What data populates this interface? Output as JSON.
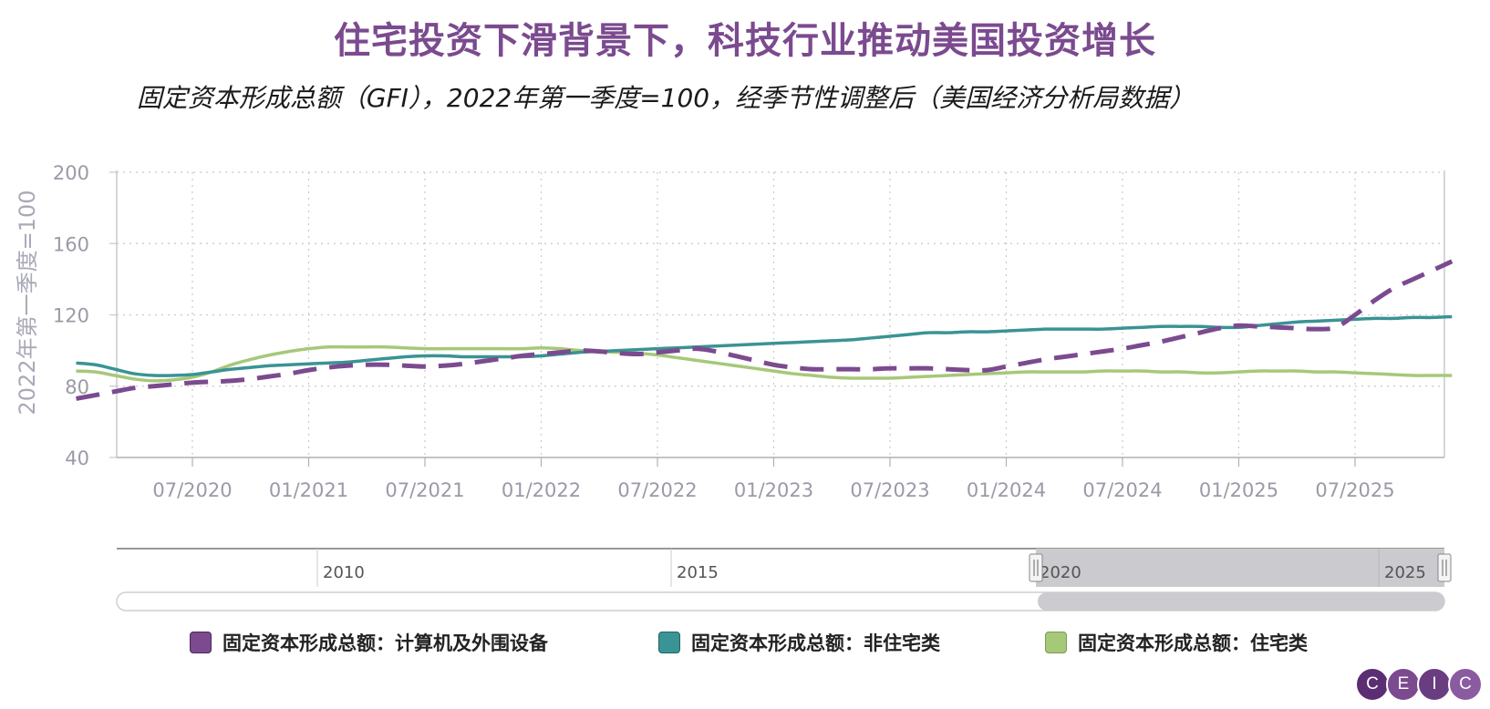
{
  "title": "住宅投资下滑背景下，科技行业推动美国投资增长",
  "subtitle": "固定资本形成总额（GFI），2022年第一季度=100，经季节性调整后（美国经济分析局数据）",
  "chart_data": {
    "type": "line",
    "ylabel": "2022年第一季度=100",
    "ylim": [
      40,
      200
    ],
    "yticks": [
      40,
      80,
      120,
      160,
      200
    ],
    "x_tick_labels": [
      "07/2020",
      "01/2021",
      "07/2021",
      "01/2022",
      "07/2022",
      "01/2023",
      "07/2023",
      "01/2024",
      "07/2024",
      "01/2025",
      "07/2025"
    ],
    "grid": true,
    "legend_position": "bottom",
    "x": [
      "01/2020",
      "02/2020",
      "03/2020",
      "04/2020",
      "05/2020",
      "06/2020",
      "07/2020",
      "08/2020",
      "09/2020",
      "10/2020",
      "11/2020",
      "12/2020",
      "01/2021",
      "02/2021",
      "03/2021",
      "04/2021",
      "05/2021",
      "06/2021",
      "07/2021",
      "08/2021",
      "09/2021",
      "10/2021",
      "11/2021",
      "12/2021",
      "01/2022",
      "02/2022",
      "03/2022",
      "04/2022",
      "05/2022",
      "06/2022",
      "07/2022",
      "08/2022",
      "09/2022",
      "10/2022",
      "11/2022",
      "12/2022",
      "01/2023",
      "02/2023",
      "03/2023",
      "04/2023",
      "05/2023",
      "06/2023",
      "07/2023",
      "08/2023",
      "09/2023",
      "10/2023",
      "11/2023",
      "12/2023",
      "01/2024",
      "02/2024",
      "03/2024",
      "04/2024",
      "05/2024",
      "06/2024",
      "07/2024",
      "08/2024",
      "09/2024",
      "10/2024",
      "11/2024",
      "12/2024",
      "01/2025",
      "02/2025",
      "03/2025",
      "04/2025",
      "05/2025",
      "06/2025",
      "07/2025",
      "08/2025",
      "09/2025",
      "10/2025",
      "11/2025",
      "12/2025"
    ],
    "series": [
      {
        "name": "固定资本形成总额：计算机及外围设备",
        "color": "#7b4a8f",
        "dashed": true,
        "values": [
          73,
          75,
          77,
          79,
          80,
          81,
          82,
          82.5,
          83,
          84,
          85.5,
          87,
          89,
          90.5,
          91.5,
          92,
          92,
          91.5,
          91,
          91.5,
          92.5,
          94,
          95.5,
          97,
          98,
          99,
          100,
          99.5,
          98.5,
          98,
          99,
          100,
          101,
          99.5,
          97,
          94.5,
          92,
          90.5,
          89.5,
          89.5,
          89.5,
          89.5,
          90,
          90,
          90,
          89.5,
          89,
          89,
          91,
          93,
          95,
          96.5,
          98,
          99.5,
          101,
          103,
          105,
          107.5,
          110,
          112.5,
          114,
          113.5,
          113,
          112.5,
          112,
          113,
          120,
          128,
          135,
          140,
          145,
          150
        ]
      },
      {
        "name": "固定资本形成总额：非住宅类",
        "color": "#3a9394",
        "dashed": false,
        "values": [
          93,
          92,
          89.5,
          87,
          86,
          86,
          86.5,
          88,
          89.5,
          90.5,
          91.5,
          92,
          92.5,
          93,
          93.5,
          94.5,
          95.5,
          96.5,
          97,
          97,
          96.5,
          96.5,
          96.5,
          96.5,
          97,
          98,
          99,
          99.5,
          100,
          100.5,
          101,
          101.5,
          102,
          102.5,
          103,
          103.5,
          104,
          104.5,
          105,
          105.5,
          106,
          107,
          108,
          109,
          110,
          110,
          110.5,
          110.5,
          111,
          111.5,
          112,
          112,
          112,
          112,
          112.5,
          113,
          113.5,
          113.5,
          113.5,
          113,
          113,
          114,
          115,
          116,
          116.5,
          117,
          117.5,
          118,
          118,
          118.5,
          118.5,
          119
        ]
      },
      {
        "name": "固定资本形成总额：住宅类",
        "color": "#a6c879",
        "dashed": false,
        "values": [
          88.5,
          88,
          86,
          84,
          83,
          83.5,
          85,
          88,
          92,
          95,
          97.5,
          99.5,
          101,
          102,
          102,
          102,
          102,
          101.5,
          101,
          101,
          101,
          101,
          101,
          101,
          101.5,
          101,
          100,
          99.5,
          99,
          98.5,
          97.5,
          96,
          94.5,
          93,
          91.5,
          90,
          88.5,
          87,
          86,
          85,
          84.5,
          84.5,
          84.5,
          85,
          85.5,
          86,
          86.5,
          87,
          87.5,
          88,
          88,
          88,
          88,
          88.5,
          88.5,
          88.5,
          88,
          88,
          87.5,
          87.5,
          88,
          88.5,
          88.5,
          88.5,
          88,
          88,
          87.5,
          87,
          86.5,
          86,
          86,
          86
        ]
      }
    ]
  },
  "navigator": {
    "labels": [
      "2010",
      "2015",
      "2020",
      "2025"
    ]
  },
  "logo": {
    "letters": [
      "C",
      "E",
      "I",
      "C"
    ],
    "colors": [
      "#5b2e73",
      "#7b4a8f",
      "#6a3d80",
      "#8a5ba0"
    ]
  }
}
